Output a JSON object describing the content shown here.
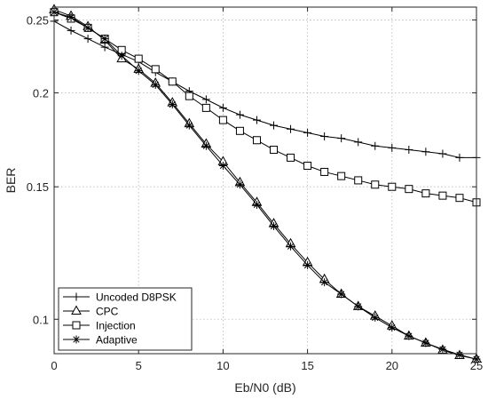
{
  "chart_data": {
    "type": "line",
    "title": "",
    "xlabel": "Eb/N0 (dB)",
    "ylabel": "BER",
    "x_scale": "linear",
    "y_scale": "log",
    "xlim": [
      0,
      25
    ],
    "ylim": [
      0.09,
      0.26
    ],
    "x_ticks": [
      0,
      5,
      10,
      15,
      20,
      25
    ],
    "x_tick_labels": [
      "0",
      "5",
      "10",
      "15",
      "20",
      "25"
    ],
    "y_ticks": [
      0.1,
      0.15,
      0.2,
      0.25
    ],
    "y_tick_labels": [
      "0.1",
      "0.15",
      "0.2",
      "0.25"
    ],
    "grid": "dotted",
    "legend_position": "bottom-left",
    "x": [
      0,
      1,
      2,
      3,
      4,
      5,
      6,
      7,
      8,
      9,
      10,
      11,
      12,
      13,
      14,
      15,
      16,
      17,
      18,
      19,
      20,
      21,
      22,
      23,
      24,
      25
    ],
    "series": [
      {
        "name": "Uncoded D8PSK",
        "marker": "plus",
        "color": "#000000",
        "values": [
          0.249,
          0.242,
          0.236,
          0.23,
          0.225,
          0.22,
          0.213,
          0.207,
          0.201,
          0.196,
          0.191,
          0.187,
          0.184,
          0.181,
          0.179,
          0.177,
          0.175,
          0.174,
          0.172,
          0.17,
          0.169,
          0.168,
          0.167,
          0.166,
          0.164,
          0.164
        ]
      },
      {
        "name": "CPC",
        "marker": "triangle",
        "color": "#000000",
        "values": [
          0.258,
          0.253,
          0.245,
          0.235,
          0.222,
          0.215,
          0.206,
          0.194,
          0.182,
          0.171,
          0.162,
          0.152,
          0.143,
          0.134,
          0.126,
          0.119,
          0.113,
          0.108,
          0.104,
          0.101,
          0.098,
          0.095,
          0.093,
          0.091,
          0.0895,
          0.0885
        ]
      },
      {
        "name": "Injection",
        "marker": "square",
        "color": "#000000",
        "values": [
          0.256,
          0.251,
          0.244,
          0.236,
          0.228,
          0.222,
          0.215,
          0.207,
          0.198,
          0.191,
          0.184,
          0.178,
          0.173,
          0.168,
          0.164,
          0.16,
          0.157,
          0.155,
          0.153,
          0.151,
          0.15,
          0.149,
          0.147,
          0.146,
          0.145,
          0.143
        ]
      },
      {
        "name": "Adaptive",
        "marker": "asterisk",
        "color": "#000000",
        "values": [
          0.256,
          0.252,
          0.244,
          0.236,
          0.224,
          0.214,
          0.205,
          0.193,
          0.181,
          0.17,
          0.16,
          0.151,
          0.142,
          0.133,
          0.125,
          0.118,
          0.112,
          0.108,
          0.104,
          0.1005,
          0.0975,
          0.095,
          0.093,
          0.0912,
          0.0897,
          0.0885
        ]
      }
    ]
  }
}
